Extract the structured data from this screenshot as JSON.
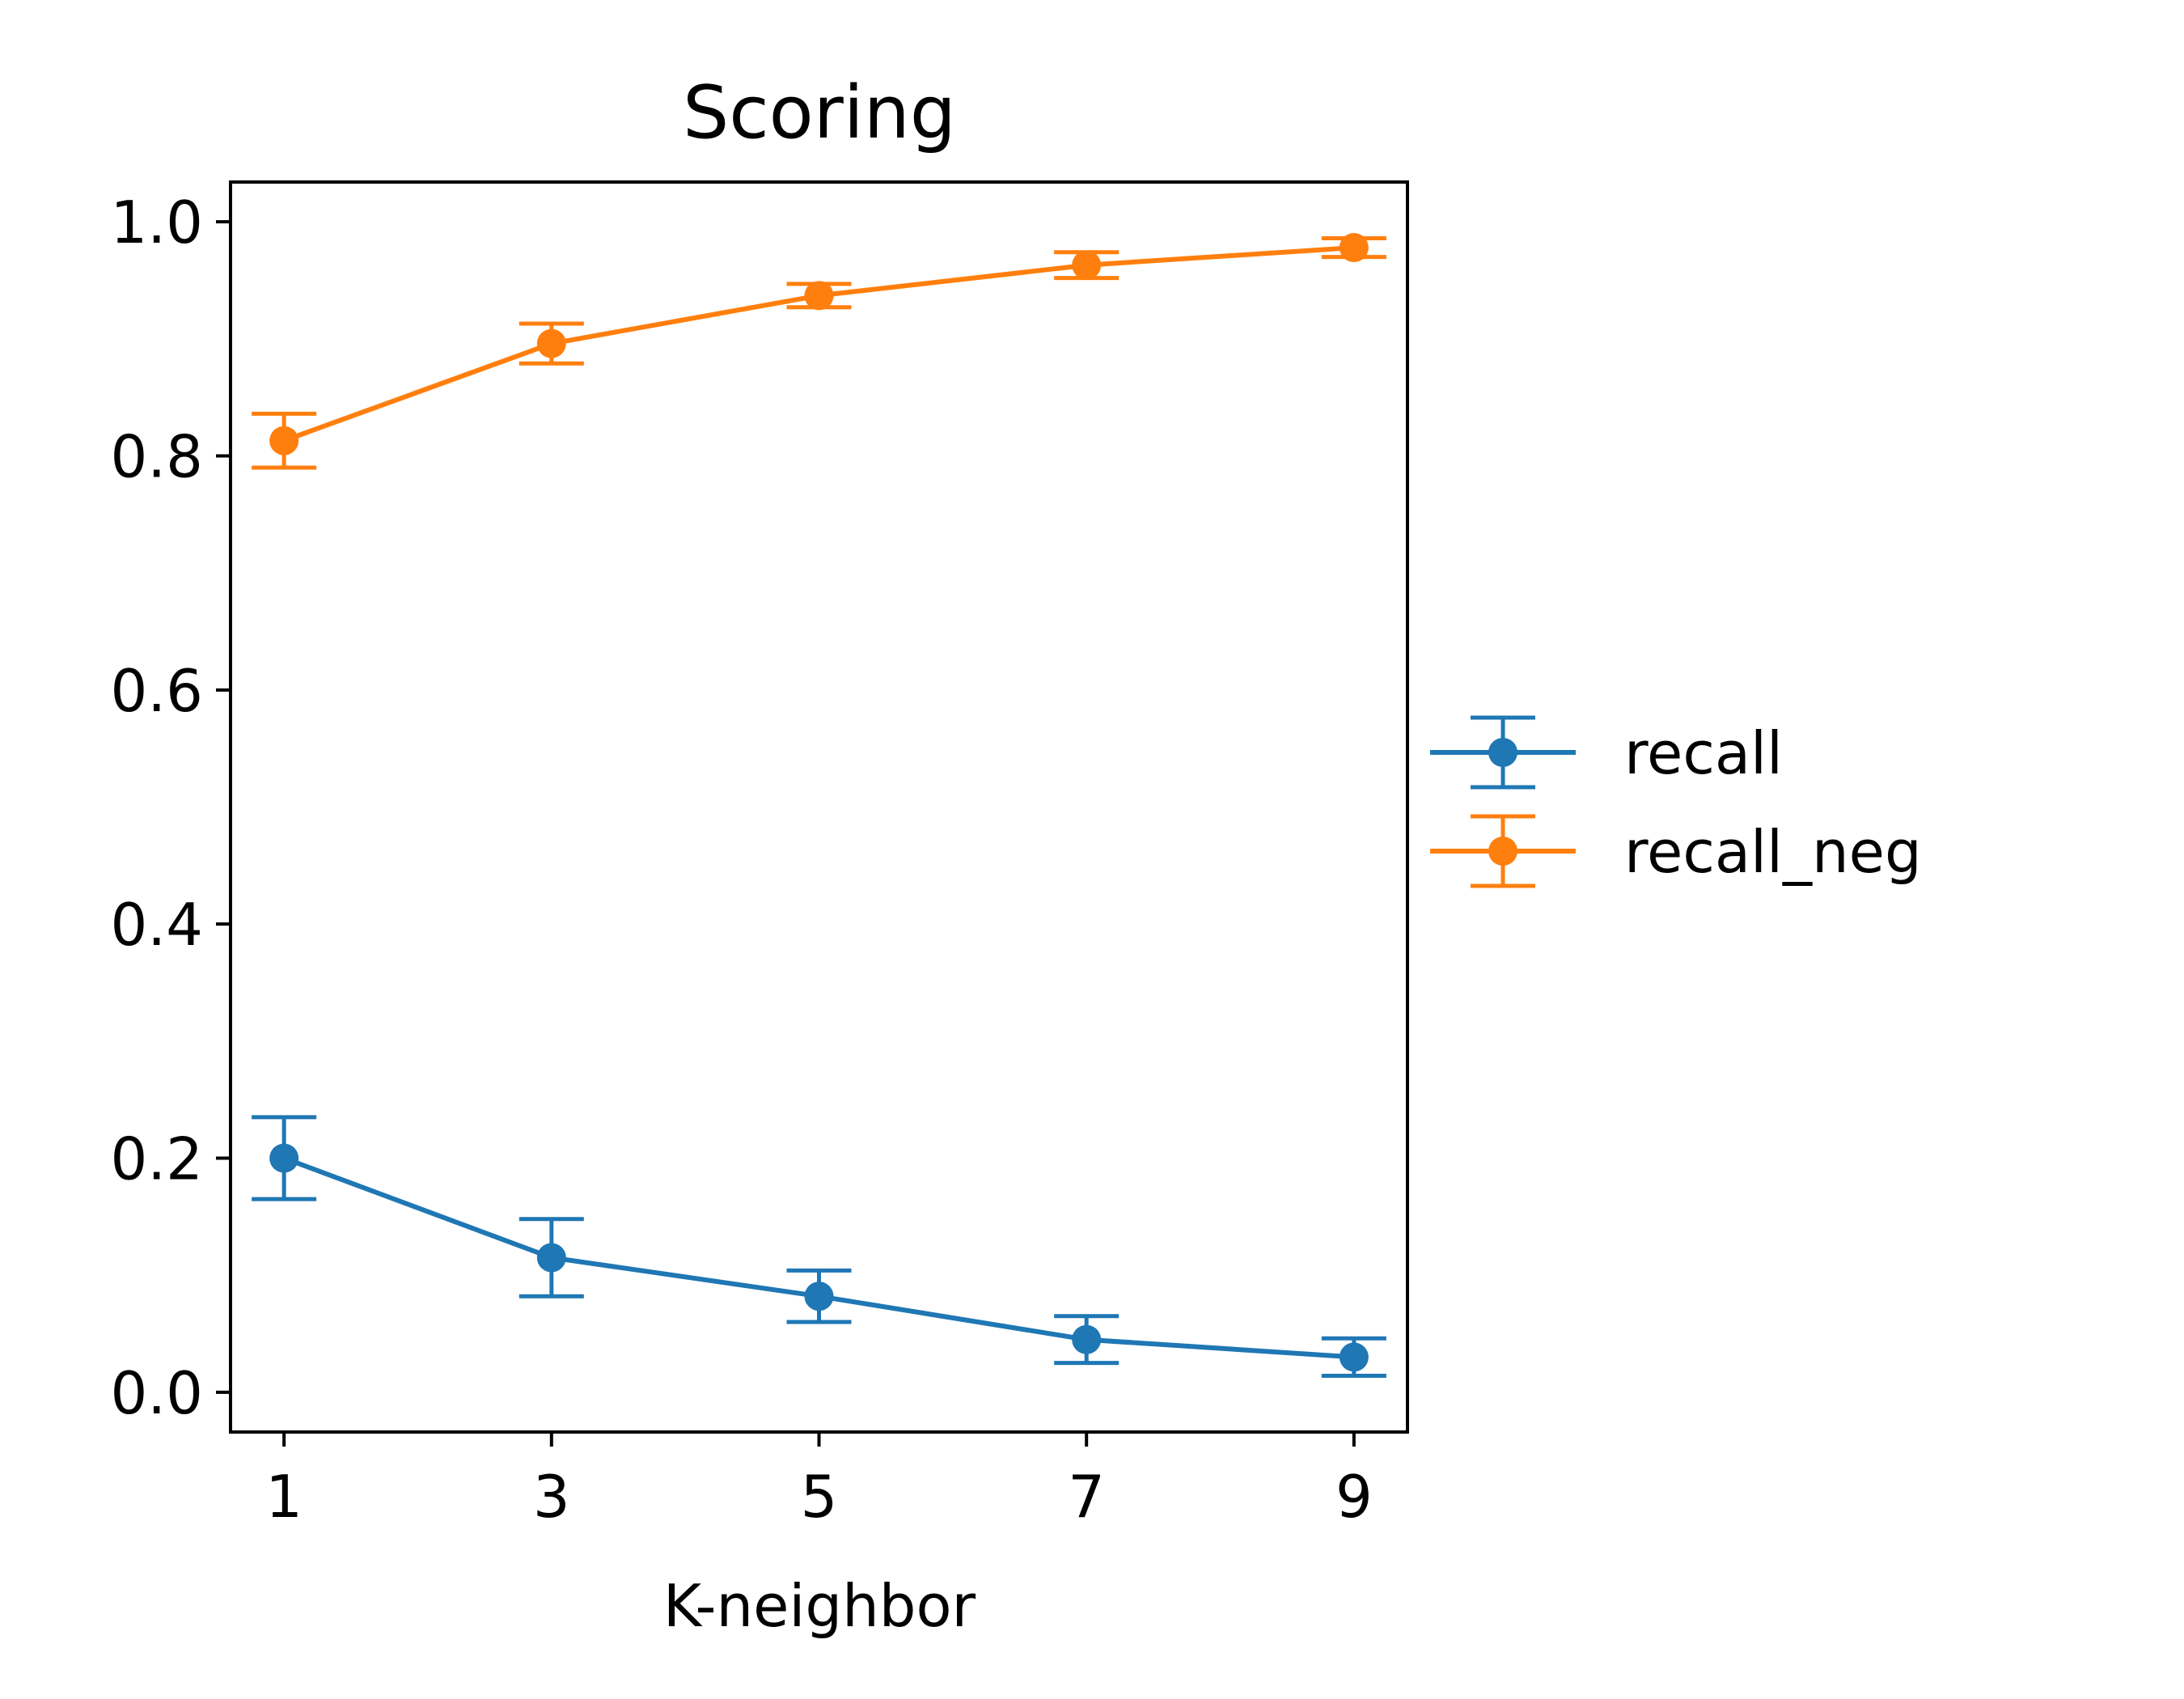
{
  "chart_data": {
    "type": "line",
    "title": "Scoring",
    "xlabel": "K-neighbor",
    "ylabel": "",
    "x": [
      1,
      3,
      5,
      7,
      9
    ],
    "xticks": [
      "1",
      "3",
      "5",
      "7",
      "9"
    ],
    "yticks": [
      "0.0",
      "0.2",
      "0.4",
      "0.6",
      "0.8",
      "1.0"
    ],
    "xlim": [
      0.6,
      9.4
    ],
    "ylim": [
      -0.034,
      1.034
    ],
    "grid": false,
    "legend_position": "center-right outside",
    "series": [
      {
        "name": "recall",
        "color": "#1f77b4",
        "values": [
          0.2,
          0.115,
          0.082,
          0.045,
          0.03
        ],
        "errors": [
          0.035,
          0.033,
          0.022,
          0.02,
          0.016
        ]
      },
      {
        "name": "recall_neg",
        "color": "#ff7f0e",
        "values": [
          0.813,
          0.896,
          0.937,
          0.963,
          0.978
        ],
        "errors": [
          0.023,
          0.017,
          0.01,
          0.011,
          0.008
        ]
      }
    ]
  }
}
